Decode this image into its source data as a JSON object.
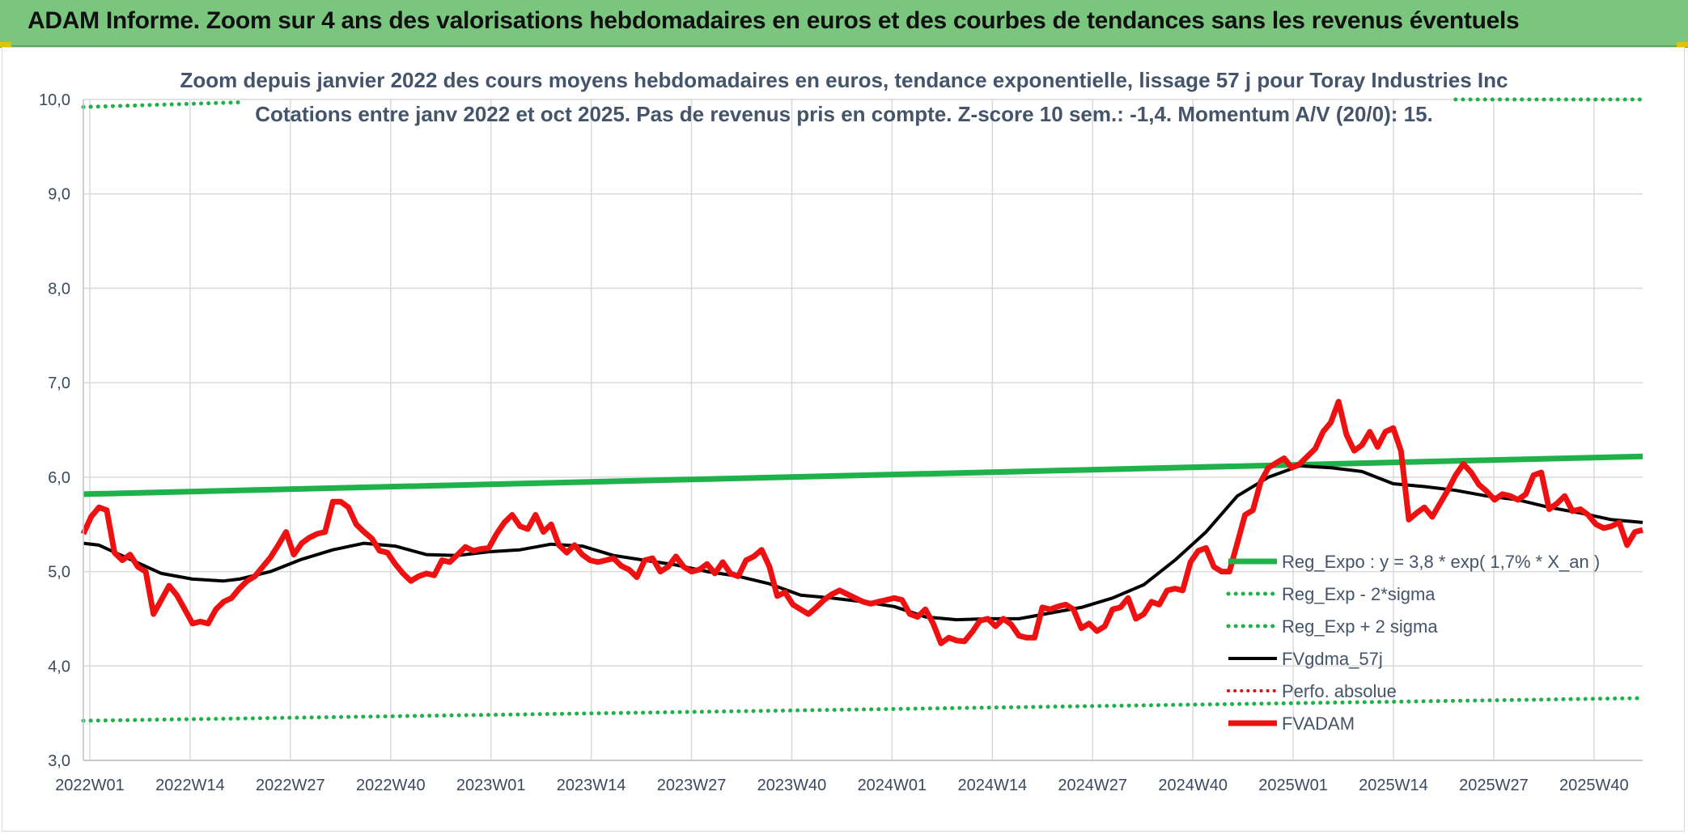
{
  "header": {
    "title": "ADAM Informe. Zoom sur 4 ans des valorisations hebdomadaires en euros et des courbes de tendances sans les revenus éventuels"
  },
  "chart_data": {
    "type": "line",
    "title": "Zoom depuis janvier 2022 des cours moyens hebdomadaires en euros, tendance exponentielle, lissage 57 j pour Toray Industries Inc",
    "subtitle": "Cotations entre janv 2022 et oct 2025. Pas de revenus pris en compte. Z-score 10 sem.: -1,4. Momentum A/V (20/0): 15.",
    "xlabel": "",
    "ylabel": "",
    "ylim": [
      3.0,
      10.0
    ],
    "yticks": [
      "3,0",
      "4,0",
      "5,0",
      "6,0",
      "7,0",
      "8,0",
      "9,0",
      "10,0"
    ],
    "xticks": [
      "2022W01",
      "2022W14",
      "2022W27",
      "2022W40",
      "2023W01",
      "2023W14",
      "2023W27",
      "2023W40",
      "2024W01",
      "2024W14",
      "2024W27",
      "2024W40",
      "2025W01",
      "2025W14",
      "2025W27",
      "2025W40"
    ],
    "x_range": [
      0,
      200
    ],
    "grid": true,
    "legend_position": "right-center",
    "colors": {
      "reg_expo": "#1fb14a",
      "sigma": "#1fb14a",
      "fvgdma": "#000000",
      "perfo": "#e01010",
      "fvadam": "#ee1111",
      "grid": "#d9d9d9",
      "axis_text": "#3a4a5c"
    },
    "series": [
      {
        "name": "Reg_Expo : y = 3,8 * exp( 1,7% *  X_an )",
        "style": "solid-thick",
        "x": [
          0,
          200
        ],
        "values": [
          5.82,
          6.22
        ]
      },
      {
        "name": "Reg_Exp - 2*sigma",
        "style": "dotted",
        "x": [
          0,
          200
        ],
        "values": [
          3.42,
          3.66
        ]
      },
      {
        "name": "Reg_Exp + 2 sigma",
        "style": "dotted",
        "x": [
          0,
          20,
          176,
          200
        ],
        "values": [
          9.92,
          9.97,
          10.0,
          10.0
        ],
        "segments": [
          [
            0,
            20
          ],
          [
            176,
            200
          ]
        ]
      },
      {
        "name": "FVgdma_57j",
        "style": "solid",
        "x": [
          0,
          2,
          6,
          10,
          14,
          18,
          20,
          24,
          28,
          32,
          36,
          40,
          44,
          48,
          52,
          56,
          60,
          64,
          68,
          72,
          76,
          80,
          84,
          88,
          92,
          96,
          100,
          104,
          108,
          112,
          116,
          120,
          124,
          128,
          132,
          136,
          140,
          144,
          148,
          152,
          156,
          160,
          164,
          168,
          172,
          176,
          180,
          184,
          188,
          192,
          196,
          200
        ],
        "values": [
          5.3,
          5.28,
          5.13,
          4.98,
          4.92,
          4.9,
          4.92,
          5.0,
          5.13,
          5.23,
          5.3,
          5.27,
          5.18,
          5.17,
          5.21,
          5.23,
          5.29,
          5.27,
          5.17,
          5.12,
          5.07,
          5.0,
          4.95,
          4.87,
          4.75,
          4.72,
          4.68,
          4.63,
          4.52,
          4.49,
          4.5,
          4.5,
          4.56,
          4.62,
          4.72,
          4.86,
          5.12,
          5.42,
          5.8,
          6.0,
          6.12,
          6.1,
          6.06,
          5.93,
          5.9,
          5.86,
          5.8,
          5.76,
          5.68,
          5.62,
          5.55,
          5.52
        ]
      },
      {
        "name": "Perfo. absolue",
        "style": "dotted",
        "x": [],
        "values": []
      },
      {
        "name": "FVADAM",
        "style": "solid-thick",
        "x": [
          0,
          1,
          2,
          3,
          4,
          5,
          6,
          7,
          8,
          9,
          10,
          11,
          12,
          13,
          14,
          15,
          16,
          17,
          18,
          19,
          20,
          21,
          22,
          23,
          24,
          25,
          26,
          27,
          28,
          29,
          30,
          31,
          32,
          33,
          34,
          35,
          36,
          37,
          38,
          39,
          40,
          41,
          42,
          43,
          44,
          45,
          46,
          47,
          48,
          49,
          50,
          51,
          52,
          53,
          54,
          55,
          56,
          57,
          58,
          59,
          60,
          61,
          62,
          63,
          64,
          65,
          66,
          67,
          68,
          69,
          70,
          71,
          72,
          73,
          74,
          75,
          76,
          77,
          78,
          79,
          80,
          81,
          82,
          83,
          84,
          85,
          86,
          87,
          88,
          89,
          90,
          91,
          92,
          93,
          94,
          95,
          96,
          97,
          98,
          99,
          100,
          101,
          102,
          103,
          104,
          105,
          106,
          107,
          108,
          109,
          110,
          111,
          112,
          113,
          114,
          115,
          116,
          117,
          118,
          119,
          120,
          121,
          122,
          123,
          124,
          125,
          126,
          127,
          128,
          129,
          130,
          131,
          132,
          133,
          134,
          135,
          136,
          137,
          138,
          139,
          140,
          141,
          142,
          143,
          144,
          145,
          146,
          147,
          148,
          149,
          150,
          151,
          152,
          153,
          154,
          155,
          156,
          157,
          158,
          159,
          160,
          161,
          162,
          163,
          164,
          165,
          166,
          167,
          168,
          169,
          170,
          171,
          172,
          173,
          174,
          175,
          176,
          177,
          178,
          179,
          180,
          181,
          182,
          183,
          184,
          185,
          186,
          187,
          188,
          189,
          190,
          191,
          192,
          193,
          194,
          195,
          196,
          197,
          198,
          199,
          200
        ],
        "values": [
          5.4,
          5.58,
          5.68,
          5.65,
          5.2,
          5.12,
          5.18,
          5.05,
          5.0,
          4.55,
          4.7,
          4.85,
          4.75,
          4.6,
          4.45,
          4.47,
          4.45,
          4.6,
          4.68,
          4.72,
          4.82,
          4.9,
          4.95,
          5.05,
          5.15,
          5.28,
          5.42,
          5.18,
          5.3,
          5.36,
          5.4,
          5.42,
          5.74,
          5.74,
          5.68,
          5.5,
          5.42,
          5.35,
          5.22,
          5.2,
          5.08,
          4.98,
          4.9,
          4.95,
          4.98,
          4.96,
          5.12,
          5.1,
          5.18,
          5.26,
          5.22,
          5.24,
          5.25,
          5.4,
          5.52,
          5.6,
          5.48,
          5.45,
          5.6,
          5.42,
          5.5,
          5.28,
          5.2,
          5.28,
          5.18,
          5.12,
          5.1,
          5.12,
          5.14,
          5.06,
          5.02,
          4.94,
          5.12,
          5.14,
          5.0,
          5.05,
          5.16,
          5.05,
          5.0,
          5.02,
          5.08,
          4.98,
          5.1,
          4.98,
          4.95,
          5.12,
          5.16,
          5.23,
          5.05,
          4.74,
          4.78,
          4.65,
          4.6,
          4.55,
          4.62,
          4.7,
          4.76,
          4.8,
          4.76,
          4.72,
          4.68,
          4.66,
          4.68,
          4.7,
          4.72,
          4.7,
          4.55,
          4.52,
          4.6,
          4.45,
          4.24,
          4.3,
          4.27,
          4.26,
          4.36,
          4.48,
          4.5,
          4.42,
          4.5,
          4.44,
          4.32,
          4.3,
          4.3,
          4.62,
          4.6,
          4.63,
          4.65,
          4.6,
          4.4,
          4.45,
          4.37,
          4.42,
          4.6,
          4.62,
          4.72,
          4.5,
          4.55,
          4.68,
          4.65,
          4.8,
          4.82,
          4.8,
          5.1,
          5.22,
          5.25,
          5.05,
          5.0,
          5.0,
          5.3,
          5.6,
          5.65,
          5.95,
          6.1,
          6.15,
          6.2,
          6.1,
          6.14,
          6.22,
          6.3,
          6.48,
          6.58,
          6.8,
          6.45,
          6.28,
          6.34,
          6.48,
          6.32,
          6.48,
          6.52,
          6.28,
          5.55,
          5.62,
          5.68,
          5.58,
          5.72,
          5.86,
          6.02,
          6.14,
          6.05,
          5.92,
          5.85,
          5.76,
          5.82,
          5.8,
          5.76,
          5.82,
          6.02,
          6.05,
          5.66,
          5.72,
          5.8,
          5.64,
          5.66,
          5.6,
          5.5,
          5.46,
          5.48,
          5.52,
          5.28,
          5.42,
          5.44
        ]
      }
    ]
  }
}
